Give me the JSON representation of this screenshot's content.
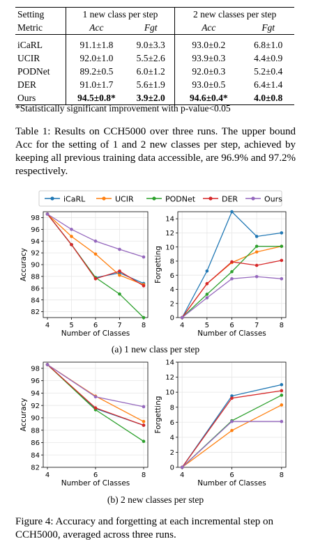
{
  "table": {
    "header1": [
      "Setting",
      "1 new class per step",
      "2 new classes per step"
    ],
    "header2": [
      "Metric",
      "Acc",
      "Fgt",
      "Acc",
      "Fgt"
    ],
    "rows": [
      {
        "method": "iCaRL",
        "a1": "91.1±1.8",
        "f1": "9.0±3.3",
        "a2": "93.0±0.2",
        "f2": "6.8±1.0"
      },
      {
        "method": "UCIR",
        "a1": "92.0±1.0",
        "f1": "5.5±2.6",
        "a2": "93.9±0.3",
        "f2": "4.4±0.9"
      },
      {
        "method": "PODNet",
        "a1": "89.2±0.5",
        "f1": "6.0±1.2",
        "a2": "92.0±0.3",
        "f2": "5.2±0.4"
      },
      {
        "method": "DER",
        "a1": "91.0±1.7",
        "f1": "5.6±1.9",
        "a2": "93.0±0.5",
        "f2": "6.4±1.4"
      },
      {
        "method": "Ours",
        "a1": "94.5±0.8*",
        "f1": "3.9±2.0",
        "a2": "94.6±0.4*",
        "f2": "4.0±0.8"
      }
    ],
    "footnote": "*Statistically significant improvement with p-value<0.05"
  },
  "table_caption": "Table 1: Results on CCH5000 over three runs. The upper bound Acc for the setting of 1 and 2 new classes per step, achieved by keeping all previous training data accessible, are 96.9% and 97.2% respectively.",
  "figure": {
    "legend": [
      "iCaRL",
      "UCIR",
      "PODNet",
      "DER",
      "Ours"
    ],
    "subcaption_a": "(a) 1 new class per step",
    "subcaption_b": "(b) 2 new classes per step",
    "caption": "Figure 4: Accuracy and forgetting at each incremental step on CCH5000, averaged across three runs."
  },
  "colors": {
    "iCaRL": "#1f77b4",
    "UCIR": "#ff7f0e",
    "PODNet": "#2ca02c",
    "DER": "#d62728",
    "Ours": "#9467bd"
  },
  "chart_data": [
    {
      "type": "line",
      "panel": "a-accuracy",
      "xlabel": "Number of Classes",
      "ylabel": "Accuracy",
      "x": [
        4,
        5,
        6,
        7,
        8
      ],
      "ylim": [
        81,
        99
      ],
      "yticks": [
        82,
        84,
        86,
        88,
        90,
        92,
        94,
        96,
        98
      ],
      "series": [
        {
          "name": "iCaRL",
          "values": [
            98.6,
            93.4,
            87.8,
            88.6,
            86.8
          ]
        },
        {
          "name": "UCIR",
          "values": [
            98.6,
            94.8,
            91.8,
            88.2,
            86.6
          ]
        },
        {
          "name": "PODNet",
          "values": [
            98.6,
            93.4,
            87.8,
            85.0,
            81.0
          ]
        },
        {
          "name": "DER",
          "values": [
            98.6,
            93.4,
            87.6,
            88.9,
            86.4
          ]
        },
        {
          "name": "Ours",
          "values": [
            98.6,
            96.0,
            94.0,
            92.6,
            91.3
          ]
        }
      ]
    },
    {
      "type": "line",
      "panel": "a-forgetting",
      "xlabel": "Number of Classes",
      "ylabel": "Forgetting",
      "x": [
        4,
        5,
        6,
        7,
        8
      ],
      "ylim": [
        0,
        15
      ],
      "yticks": [
        0,
        2,
        4,
        6,
        8,
        10,
        12,
        14
      ],
      "series": [
        {
          "name": "iCaRL",
          "values": [
            0,
            6.6,
            15.0,
            11.5,
            12.0
          ]
        },
        {
          "name": "UCIR",
          "values": [
            0,
            4.8,
            7.8,
            9.3,
            10.1
          ]
        },
        {
          "name": "PODNet",
          "values": [
            0,
            3.3,
            6.5,
            10.1,
            10.1
          ]
        },
        {
          "name": "DER",
          "values": [
            0,
            4.8,
            7.9,
            7.4,
            8.1
          ]
        },
        {
          "name": "Ours",
          "values": [
            0,
            2.8,
            5.5,
            5.8,
            5.5
          ]
        }
      ]
    },
    {
      "type": "line",
      "panel": "b-accuracy",
      "xlabel": "Number of Classes",
      "ylabel": "Accuracy",
      "x": [
        4,
        6,
        8
      ],
      "ylim": [
        82,
        99
      ],
      "yticks": [
        82,
        84,
        86,
        88,
        90,
        92,
        94,
        96,
        98
      ],
      "series": [
        {
          "name": "iCaRL",
          "values": [
            98.6,
            91.5,
            88.8
          ]
        },
        {
          "name": "UCIR",
          "values": [
            98.6,
            93.5,
            89.4
          ]
        },
        {
          "name": "PODNet",
          "values": [
            98.6,
            91.3,
            86.2
          ]
        },
        {
          "name": "DER",
          "values": [
            98.6,
            91.6,
            88.8
          ]
        },
        {
          "name": "Ours",
          "values": [
            98.6,
            93.4,
            91.8
          ]
        }
      ]
    },
    {
      "type": "line",
      "panel": "b-forgetting",
      "xlabel": "Number of Classes",
      "ylabel": "Forgetting",
      "x": [
        4,
        6,
        8
      ],
      "ylim": [
        0,
        14
      ],
      "yticks": [
        0,
        2,
        4,
        6,
        8,
        10,
        12,
        14
      ],
      "series": [
        {
          "name": "iCaRL",
          "values": [
            0,
            9.5,
            11.0
          ]
        },
        {
          "name": "UCIR",
          "values": [
            0,
            4.9,
            8.3
          ]
        },
        {
          "name": "PODNet",
          "values": [
            0,
            6.2,
            9.6
          ]
        },
        {
          "name": "DER",
          "values": [
            0,
            9.2,
            10.2
          ]
        },
        {
          "name": "Ours",
          "values": [
            0,
            6.1,
            6.1
          ]
        }
      ]
    }
  ]
}
